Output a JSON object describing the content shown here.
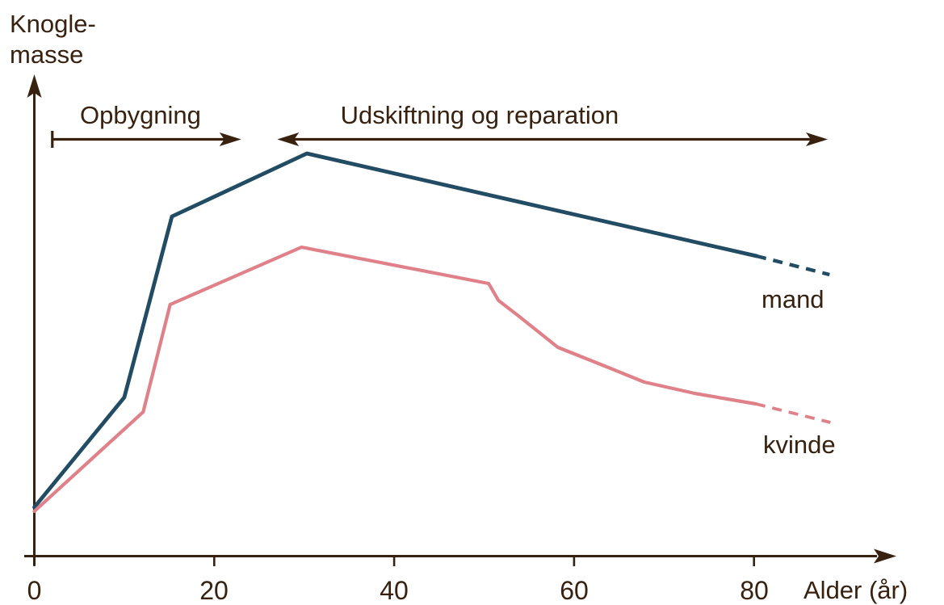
{
  "figure": {
    "background": "#ffffff",
    "text_color": "#38210F",
    "axis_color": "#38210F"
  },
  "chart_data": {
    "type": "line",
    "xlabel": "Alder (år)",
    "ylabel_line1": "Knogle-",
    "ylabel_line2": "masse",
    "x_ticks": [
      "0",
      "20",
      "40",
      "60",
      "80"
    ],
    "x_tick_values": [
      0,
      20,
      40,
      60,
      80
    ],
    "xlim": [
      0,
      96
    ],
    "ylim": [
      0,
      119
    ],
    "grid": false,
    "legend_position": "inline-right-of-curves",
    "annotations": [
      {
        "label": "Opbygning",
        "arrow": "right",
        "start_cap": "bar",
        "x_start": 2,
        "x_end": 23,
        "label_x": 11.8
      },
      {
        "label": "Udskiftning og reparation",
        "arrow": "both",
        "start_cap": "none",
        "x_start": 27,
        "x_end": 88.2,
        "label_x": 49.5
      }
    ],
    "series": [
      {
        "name": "mand",
        "color": "#224B64",
        "points": [
          [
            0,
            12
          ],
          [
            10,
            39.2
          ],
          [
            15.3,
            84
          ],
          [
            30.3,
            99.6
          ],
          [
            80.3,
            74.2
          ]
        ],
        "dashed_points": [
          [
            80.3,
            74.2
          ],
          [
            88.4,
            69.6
          ]
        ]
      },
      {
        "name": "kvinde",
        "color": "#E08088",
        "points": [
          [
            0,
            11
          ],
          [
            12.1,
            35.6
          ],
          [
            15.1,
            62.2
          ],
          [
            29.7,
            76.4
          ],
          [
            50.5,
            67.4
          ],
          [
            51.6,
            63.2
          ],
          [
            53.7,
            59.6
          ],
          [
            58.2,
            51.6
          ],
          [
            62.7,
            47.6
          ],
          [
            67.8,
            43
          ],
          [
            73.4,
            40.2
          ],
          [
            80.2,
            37.6
          ]
        ],
        "dashed_points": [
          [
            80.2,
            37.6
          ],
          [
            88.5,
            33
          ]
        ]
      }
    ]
  }
}
